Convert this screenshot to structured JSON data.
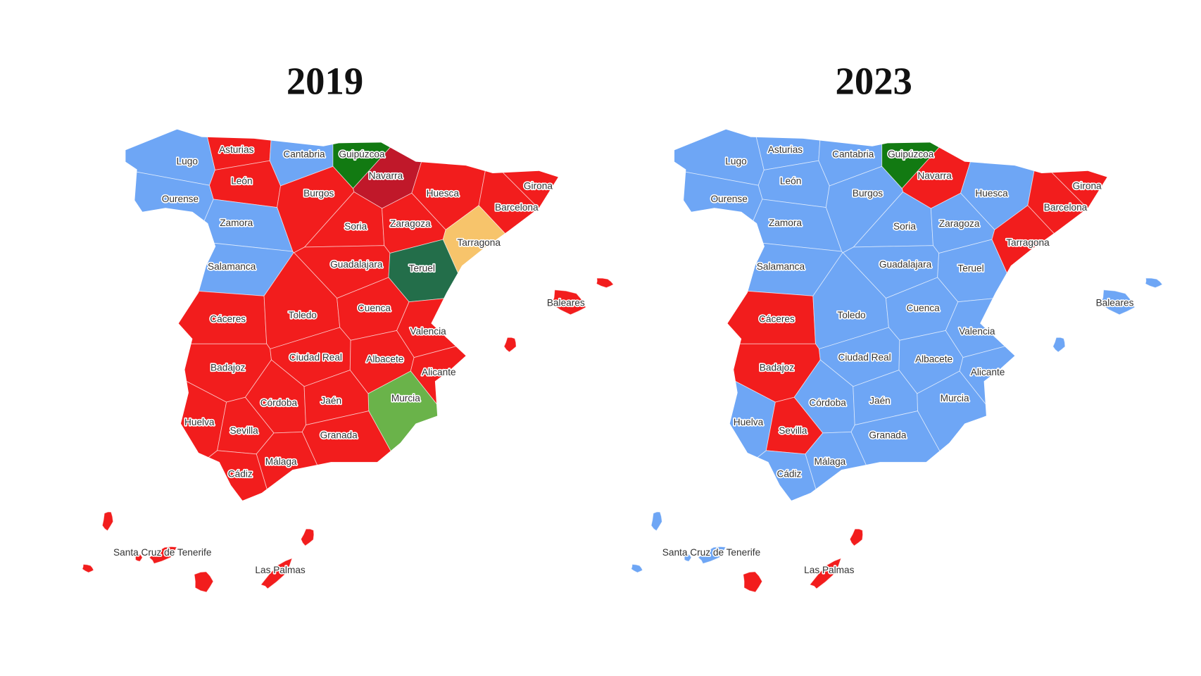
{
  "maps": [
    {
      "title": "2019",
      "provinces": [
        {
          "label": "Asturias",
          "color": "#f21d1d"
        },
        {
          "label": "Cantabria",
          "color": "#6ea6f5"
        },
        {
          "label": "Guipúzcoa",
          "color": "#127a12"
        },
        {
          "label": "Lugo",
          "color": "#6ea6f5"
        },
        {
          "label": "León",
          "color": "#f21d1d"
        },
        {
          "label": "Navarra",
          "color": "#c0182a"
        },
        {
          "label": "Huesca",
          "color": "#f21d1d"
        },
        {
          "label": "Girona",
          "color": "#f21d1d"
        },
        {
          "label": "Ourense",
          "color": "#6ea6f5"
        },
        {
          "label": "Burgos",
          "color": "#f21d1d"
        },
        {
          "label": "Barcelona",
          "color": "#f21d1d"
        },
        {
          "label": "Zamora",
          "color": "#6ea6f5"
        },
        {
          "label": "Soria",
          "color": "#f21d1d"
        },
        {
          "label": "Zaragoza",
          "color": "#f21d1d"
        },
        {
          "label": "Tarragona",
          "color": "#f7c46b"
        },
        {
          "label": "Salamanca",
          "color": "#6ea6f5"
        },
        {
          "label": "Guadalajara",
          "color": "#f21d1d"
        },
        {
          "label": "Teruel",
          "color": "#236e4a"
        },
        {
          "label": "Baleares",
          "color": "#f21d1d"
        },
        {
          "label": "Cáceres",
          "color": "#f21d1d"
        },
        {
          "label": "Toledo",
          "color": "#f21d1d"
        },
        {
          "label": "Cuenca",
          "color": "#f21d1d"
        },
        {
          "label": "Valencia",
          "color": "#f21d1d"
        },
        {
          "label": "Badajoz",
          "color": "#f21d1d"
        },
        {
          "label": "Ciudad Real",
          "color": "#f21d1d"
        },
        {
          "label": "Albacete",
          "color": "#f21d1d"
        },
        {
          "label": "Alicante",
          "color": "#f21d1d"
        },
        {
          "label": "Murcia",
          "color": "#6ab34a"
        },
        {
          "label": "Córdoba",
          "color": "#f21d1d"
        },
        {
          "label": "Jaén",
          "color": "#f21d1d"
        },
        {
          "label": "Huelva",
          "color": "#f21d1d"
        },
        {
          "label": "Sevilla",
          "color": "#f21d1d"
        },
        {
          "label": "Granada",
          "color": "#f21d1d"
        },
        {
          "label": "Málaga",
          "color": "#f21d1d"
        },
        {
          "label": "Cádiz",
          "color": "#f21d1d"
        },
        {
          "label": "Santa Cruz de Tenerife",
          "color": "#f21d1d"
        },
        {
          "label": "Las Palmas",
          "color": "#f21d1d"
        }
      ]
    },
    {
      "title": "2023",
      "provinces": [
        {
          "label": "Asturias",
          "color": "#6ea6f5"
        },
        {
          "label": "Cantabria",
          "color": "#6ea6f5"
        },
        {
          "label": "Guipúzcoa",
          "color": "#127a12"
        },
        {
          "label": "Lugo",
          "color": "#6ea6f5"
        },
        {
          "label": "León",
          "color": "#6ea6f5"
        },
        {
          "label": "Navarra",
          "color": "#f21d1d"
        },
        {
          "label": "Huesca",
          "color": "#6ea6f5"
        },
        {
          "label": "Girona",
          "color": "#f21d1d"
        },
        {
          "label": "Ourense",
          "color": "#6ea6f5"
        },
        {
          "label": "Burgos",
          "color": "#6ea6f5"
        },
        {
          "label": "Barcelona",
          "color": "#f21d1d"
        },
        {
          "label": "Zamora",
          "color": "#6ea6f5"
        },
        {
          "label": "Soria",
          "color": "#6ea6f5"
        },
        {
          "label": "Zaragoza",
          "color": "#6ea6f5"
        },
        {
          "label": "Tarragona",
          "color": "#f21d1d"
        },
        {
          "label": "Salamanca",
          "color": "#6ea6f5"
        },
        {
          "label": "Guadalajara",
          "color": "#6ea6f5"
        },
        {
          "label": "Teruel",
          "color": "#6ea6f5"
        },
        {
          "label": "Baleares",
          "color": "#6ea6f5"
        },
        {
          "label": "Cáceres",
          "color": "#f21d1d"
        },
        {
          "label": "Toledo",
          "color": "#6ea6f5"
        },
        {
          "label": "Cuenca",
          "color": "#6ea6f5"
        },
        {
          "label": "Valencia",
          "color": "#6ea6f5"
        },
        {
          "label": "Badajoz",
          "color": "#f21d1d"
        },
        {
          "label": "Ciudad Real",
          "color": "#6ea6f5"
        },
        {
          "label": "Albacete",
          "color": "#6ea6f5"
        },
        {
          "label": "Alicante",
          "color": "#6ea6f5"
        },
        {
          "label": "Murcia",
          "color": "#6ea6f5"
        },
        {
          "label": "Córdoba",
          "color": "#6ea6f5"
        },
        {
          "label": "Jaén",
          "color": "#6ea6f5"
        },
        {
          "label": "Huelva",
          "color": "#6ea6f5"
        },
        {
          "label": "Sevilla",
          "color": "#f21d1d"
        },
        {
          "label": "Granada",
          "color": "#6ea6f5"
        },
        {
          "label": "Málaga",
          "color": "#6ea6f5"
        },
        {
          "label": "Cádiz",
          "color": "#6ea6f5"
        },
        {
          "label": "Santa Cruz de Tenerife",
          "color": "#6ea6f5"
        },
        {
          "label": "Las Palmas",
          "color": "#f21d1d"
        }
      ]
    }
  ]
}
